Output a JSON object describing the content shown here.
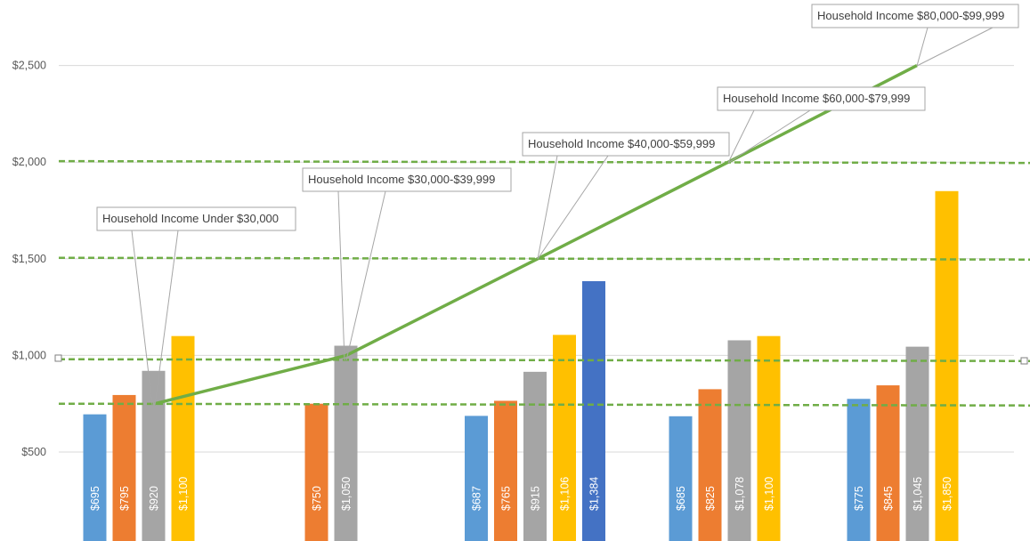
{
  "chart_data": {
    "type": "bar",
    "ylim": [
      0,
      2750
    ],
    "yticks": [
      500,
      1000,
      1500,
      2000,
      2500
    ],
    "ytick_labels": [
      "$500",
      "$1,000",
      "$1,500",
      "$2,000",
      "$2,500"
    ],
    "colors": {
      "blue": "#5b9bd5",
      "orange": "#ed7d31",
      "gray": "#a5a5a5",
      "yellow": "#ffc000",
      "darkblue": "#4472c4",
      "trend": "#70ad47",
      "gridline": "#d9d9d9"
    },
    "groups": [
      {
        "bars": [
          {
            "value": 695,
            "label": "$695",
            "color": "blue"
          },
          {
            "value": 795,
            "label": "$795",
            "color": "orange"
          },
          {
            "value": 920,
            "label": "$920",
            "color": "gray"
          },
          {
            "value": 1100,
            "label": "$1,100",
            "color": "yellow"
          }
        ]
      },
      {
        "bars": [
          {
            "value": 750,
            "label": "$750",
            "color": "orange"
          },
          {
            "value": 1050,
            "label": "$1,050",
            "color": "gray"
          }
        ]
      },
      {
        "bars": [
          {
            "value": 687,
            "label": "$687",
            "color": "blue"
          },
          {
            "value": 765,
            "label": "$765",
            "color": "orange"
          },
          {
            "value": 915,
            "label": "$915",
            "color": "gray"
          },
          {
            "value": 1106,
            "label": "$1,106",
            "color": "yellow"
          },
          {
            "value": 1384,
            "label": "$1,384",
            "color": "darkblue"
          }
        ]
      },
      {
        "bars": [
          {
            "value": 685,
            "label": "$685",
            "color": "blue"
          },
          {
            "value": 825,
            "label": "$825",
            "color": "orange"
          },
          {
            "value": 1078,
            "label": "$1,078",
            "color": "gray"
          },
          {
            "value": 1100,
            "label": "$1,100",
            "color": "yellow"
          }
        ]
      },
      {
        "bars": [
          {
            "value": 775,
            "label": "$775",
            "color": "blue"
          },
          {
            "value": 845,
            "label": "$845",
            "color": "orange"
          },
          {
            "value": 1045,
            "label": "$1,045",
            "color": "gray"
          },
          {
            "value": 1850,
            "label": "$1,850",
            "color": "yellow"
          }
        ]
      }
    ],
    "reference_lines": [
      750,
      980,
      1505,
      2005
    ],
    "trend_line": [
      {
        "group": 0,
        "value": 750
      },
      {
        "group": 1,
        "value": 1000
      },
      {
        "group": 2,
        "value": 1500
      },
      {
        "group": 3,
        "value": 2000
      },
      {
        "group": 4,
        "value": 2500
      }
    ],
    "annotations": [
      "Household Income Under $30,000",
      "Household Income $30,000-$39,999",
      "Household Income $40,000-$59,999",
      "Household Income $60,000-$79,999",
      "Household Income $80,000-$99,999"
    ]
  }
}
